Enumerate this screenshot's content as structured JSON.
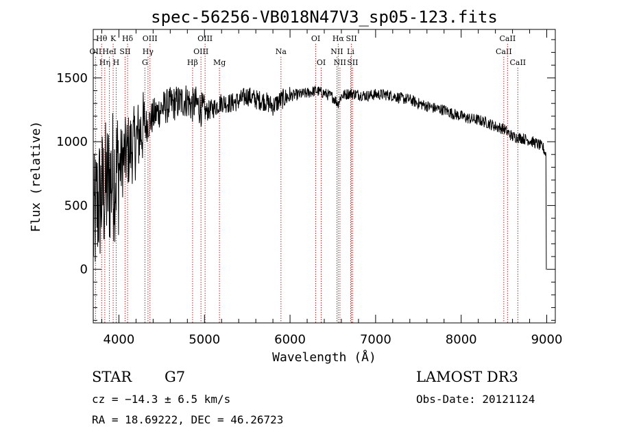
{
  "chart_data": {
    "type": "line",
    "title": "spec-56256-VB018N47V3_sp05-123.fits",
    "xlabel": "Wavelength (Å)",
    "ylabel": "Flux (relative)",
    "xlim": [
      3700,
      9100
    ],
    "ylim": [
      -420,
      1880
    ],
    "xticks": [
      4000,
      5000,
      6000,
      7000,
      8000,
      9000
    ],
    "xtick_labels": [
      "4000",
      "5000",
      "6000",
      "7000",
      "8000",
      "9000"
    ],
    "yticks": [
      0,
      500,
      1000,
      1500
    ],
    "ytick_labels": [
      "0",
      "500",
      "1000",
      "1500"
    ],
    "series": [
      {
        "name": "flux",
        "x": [
          3700,
          3740,
          3780,
          3820,
          3860,
          3900,
          3940,
          3980,
          4020,
          4060,
          4100,
          4150,
          4200,
          4250,
          4300,
          4350,
          4400,
          4450,
          4500,
          4600,
          4700,
          4800,
          4850,
          4900,
          5000,
          5100,
          5200,
          5300,
          5400,
          5500,
          5600,
          5700,
          5800,
          5900,
          6000,
          6100,
          6200,
          6300,
          6400,
          6500,
          6560,
          6600,
          6700,
          6800,
          6900,
          7000,
          7100,
          7200,
          7300,
          7400,
          7500,
          7600,
          7700,
          7800,
          7900,
          8000,
          8100,
          8200,
          8300,
          8400,
          8500,
          8600,
          8700,
          8800,
          8900,
          8960,
          8990,
          9000
        ],
        "values": [
          300,
          500,
          550,
          600,
          650,
          700,
          750,
          780,
          820,
          880,
          920,
          960,
          1000,
          1080,
          1120,
          1150,
          1200,
          1230,
          1260,
          1290,
          1310,
          1330,
          1280,
          1300,
          1230,
          1260,
          1310,
          1300,
          1320,
          1360,
          1330,
          1320,
          1280,
          1330,
          1360,
          1370,
          1380,
          1400,
          1380,
          1350,
          1300,
          1360,
          1380,
          1370,
          1360,
          1370,
          1370,
          1360,
          1340,
          1330,
          1300,
          1280,
          1260,
          1250,
          1220,
          1200,
          1180,
          1170,
          1150,
          1120,
          1100,
          1040,
          1030,
          1010,
          980,
          950,
          900,
          0
        ]
      }
    ],
    "lines": [
      {
        "name": "OII",
        "wavelength": 3727,
        "row": 1
      },
      {
        "name": "Hθ",
        "wavelength": 3798,
        "row": 0
      },
      {
        "name": "Hη",
        "wavelength": 3835,
        "row": 2
      },
      {
        "name": "K",
        "wavelength": 3933,
        "row": 0
      },
      {
        "name": "H",
        "wavelength": 3968,
        "row": 2
      },
      {
        "name": "HeI",
        "wavelength": 3889,
        "row": 1
      },
      {
        "name": "SII",
        "wavelength": 4072,
        "row": 1
      },
      {
        "name": "Hδ",
        "wavelength": 4101,
        "row": 0
      },
      {
        "name": "G",
        "wavelength": 4304,
        "row": 2
      },
      {
        "name": "Hγ",
        "wavelength": 4340,
        "row": 1
      },
      {
        "name": "OIII",
        "wavelength": 4363,
        "row": 0
      },
      {
        "name": "Hβ",
        "wavelength": 4861,
        "row": 2
      },
      {
        "name": "OIII",
        "wavelength": 4959,
        "row": 1
      },
      {
        "name": "OIII",
        "wavelength": 5007,
        "row": 0
      },
      {
        "name": "Mg",
        "wavelength": 5175,
        "row": 2
      },
      {
        "name": "Na",
        "wavelength": 5894,
        "row": 1
      },
      {
        "name": "OI",
        "wavelength": 6300,
        "row": 0
      },
      {
        "name": "OI",
        "wavelength": 6364,
        "row": 2
      },
      {
        "name": "NII",
        "wavelength": 6548,
        "row": 1
      },
      {
        "name": "Hα",
        "wavelength": 6563,
        "row": 0
      },
      {
        "name": "NII",
        "wavelength": 6583,
        "row": 2
      },
      {
        "name": "SII",
        "wavelength": 6717,
        "row": 0
      },
      {
        "name": "Li",
        "wavelength": 6708,
        "row": 1
      },
      {
        "name": "SII",
        "wavelength": 6731,
        "row": 2
      },
      {
        "name": "CaII",
        "wavelength": 8498,
        "row": 1
      },
      {
        "name": "CaII",
        "wavelength": 8542,
        "row": 0
      },
      {
        "name": "CaII",
        "wavelength": 8662,
        "row": 2
      }
    ]
  },
  "info": {
    "class": "STAR",
    "subclass": "G7",
    "cz": "cz = −14.3 ± 6.5 km/s",
    "radec": "RA =  18.69222, DEC =  46.26723",
    "survey": "LAMOST DR3",
    "obsdate": "Obs-Date: 20121124"
  },
  "colors": {
    "line_marker": "#b22222",
    "spectrum": "#000000"
  }
}
